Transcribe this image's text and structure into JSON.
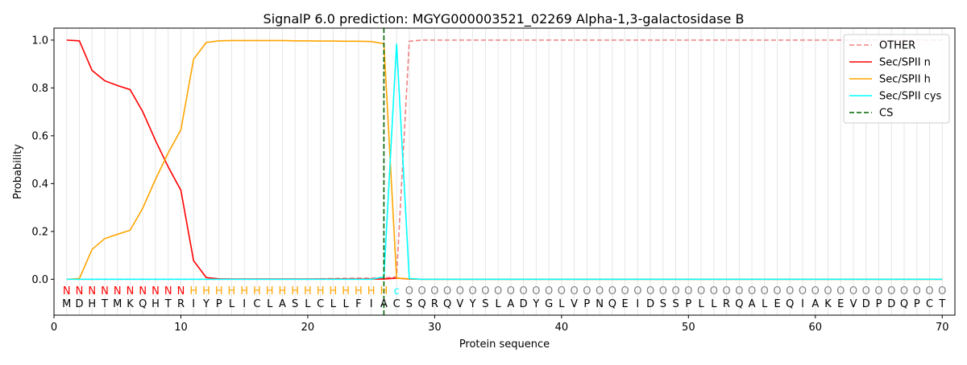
{
  "chart_data": {
    "type": "line",
    "title": "SignalP 6.0 prediction: MGYG000003521_02269 Alpha-1,3-galactosidase B",
    "xlabel": "Protein sequence",
    "ylabel": "Probability",
    "xlim": [
      0,
      71
    ],
    "ylim": [
      -0.15,
      1.05
    ],
    "xticks": [
      0,
      10,
      20,
      30,
      40,
      50,
      60,
      70
    ],
    "yticks": [
      0.0,
      0.2,
      0.4,
      0.6,
      0.8,
      1.0
    ],
    "xtick_labels": [
      "0",
      "10",
      "20",
      "30",
      "40",
      "50",
      "60",
      "70"
    ],
    "ytick_labels": [
      "0.0",
      "0.2",
      "0.4",
      "0.6",
      "0.8",
      "1.0"
    ],
    "grid": "vertical lines at each residue position",
    "legend_position": "top-right",
    "sequence": "MDHTMKQHTRIYPLICLASLCLLFIACSQRQVYSLADYGLVPNQEIDSSPLLRQALEQIAKEVDPDQPCT",
    "labels": "NNNNNNNNNNHHHHHHHHHHHHHHHHcOOOOOOOOOOOOOOOOOOOOOOOOOOOOOOOOOOOOOOOOOOO",
    "label_colors": {
      "N": "#ff0000",
      "H": "#ffa500",
      "c": "#00ffff",
      "O": "#808080"
    },
    "cleavage_site": 26,
    "series": [
      {
        "name": "OTHER",
        "color": "#f08080",
        "dash": "dashed",
        "values": [
          0,
          0,
          0,
          0,
          0,
          0,
          0,
          0,
          0,
          0,
          0,
          0,
          0,
          0,
          0,
          0,
          0,
          0,
          0,
          0,
          0.002,
          0.003,
          0.004,
          0.005,
          0.005,
          0.006,
          0.01,
          0.995,
          1,
          1,
          1,
          1,
          1,
          1,
          1,
          1,
          1,
          1,
          1,
          1,
          1,
          1,
          1,
          1,
          1,
          1,
          1,
          1,
          1,
          1,
          1,
          1,
          1,
          1,
          1,
          1,
          1,
          1,
          1,
          1,
          1,
          1,
          1,
          1,
          1,
          1,
          1,
          1,
          1,
          1
        ]
      },
      {
        "name": "Sec/SPII n",
        "color": "#ff0000",
        "dash": "solid",
        "values": [
          1.0,
          0.997,
          0.873,
          0.83,
          0.81,
          0.793,
          0.7,
          0.58,
          0.47,
          0.372,
          0.078,
          0.007,
          0.002,
          0.001,
          0.001,
          0.001,
          0.001,
          0.001,
          0.001,
          0.001,
          0.001,
          0.001,
          0.001,
          0.001,
          0.001,
          0.001,
          0.005,
          0.001,
          0,
          0,
          0,
          0,
          0,
          0,
          0,
          0,
          0,
          0,
          0,
          0,
          0,
          0,
          0,
          0,
          0,
          0,
          0,
          0,
          0,
          0,
          0,
          0,
          0,
          0,
          0,
          0,
          0,
          0,
          0,
          0,
          0,
          0,
          0,
          0,
          0,
          0,
          0,
          0,
          0,
          0
        ]
      },
      {
        "name": "Sec/SPII h",
        "color": "#ffa500",
        "dash": "solid",
        "values": [
          0,
          0.003,
          0.125,
          0.17,
          0.188,
          0.205,
          0.298,
          0.418,
          0.528,
          0.625,
          0.92,
          0.99,
          0.997,
          0.998,
          0.998,
          0.998,
          0.998,
          0.998,
          0.997,
          0.997,
          0.996,
          0.996,
          0.995,
          0.995,
          0.994,
          0.985,
          0.005,
          0.002,
          0,
          0,
          0,
          0,
          0,
          0,
          0,
          0,
          0,
          0,
          0,
          0,
          0,
          0,
          0,
          0,
          0,
          0,
          0,
          0,
          0,
          0,
          0,
          0,
          0,
          0,
          0,
          0,
          0,
          0,
          0,
          0,
          0,
          0,
          0,
          0,
          0,
          0,
          0,
          0,
          0,
          0
        ]
      },
      {
        "name": "Sec/SPII cys",
        "color": "#00ffff",
        "dash": "solid",
        "values": [
          0,
          0,
          0,
          0,
          0,
          0,
          0,
          0,
          0,
          0,
          0,
          0,
          0,
          0,
          0,
          0,
          0,
          0,
          0,
          0,
          0,
          0,
          0,
          0,
          0,
          0.01,
          0.985,
          0.003,
          0,
          0,
          0,
          0,
          0,
          0,
          0,
          0,
          0,
          0,
          0,
          0,
          0,
          0,
          0,
          0,
          0,
          0,
          0,
          0,
          0,
          0,
          0,
          0,
          0,
          0,
          0,
          0,
          0,
          0,
          0,
          0,
          0,
          0,
          0,
          0,
          0,
          0,
          0,
          0,
          0,
          0
        ]
      },
      {
        "name": "CS",
        "color": "#006400",
        "dash": "dashed",
        "x": 26
      }
    ]
  }
}
